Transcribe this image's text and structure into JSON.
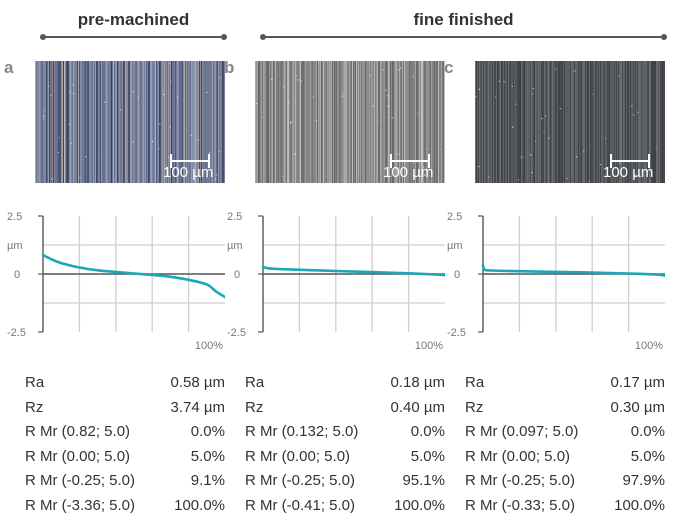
{
  "groups": [
    {
      "title": "pre-machined"
    },
    {
      "title": "fine finished"
    }
  ],
  "scale_bar_label": "100 µm",
  "colors": {
    "curve": "#1ba7b8",
    "grid": "#cfcfcf",
    "axis": "#555555"
  },
  "panels": [
    {
      "label": "a",
      "group": "pre-machined",
      "image": {
        "style": "colorful-scratched",
        "base": "#5a6482"
      },
      "metrics": [
        {
          "key": "Ra",
          "value": "0.58 µm"
        },
        {
          "key": "Rz",
          "value": "3.74 µm"
        },
        {
          "key": "R Mr (0.82; 5.0)",
          "value": "0.0%"
        },
        {
          "key": "R Mr (0.00; 5.0)",
          "value": "5.0%"
        },
        {
          "key": "R Mr (-0.25; 5.0)",
          "value": "9.1%"
        },
        {
          "key": "R Mr (-3.36; 5.0)",
          "value": "100.0%"
        }
      ]
    },
    {
      "label": "b",
      "group": "fine finished",
      "image": {
        "style": "gray-streaks",
        "base": "#7c7c7c"
      },
      "metrics": [
        {
          "key": "Ra",
          "value": "0.18 µm"
        },
        {
          "key": "Rz",
          "value": "0.40 µm"
        },
        {
          "key": "R Mr (0.132; 5.0)",
          "value": "0.0%"
        },
        {
          "key": "R Mr (0.00; 5.0)",
          "value": "5.0%"
        },
        {
          "key": "R Mr (-0.25; 5.0)",
          "value": "95.1%"
        },
        {
          "key": "R Mr (-0.41; 5.0)",
          "value": "100.0%"
        }
      ]
    },
    {
      "label": "c",
      "group": "fine finished",
      "image": {
        "style": "dark-gray",
        "base": "#4d5155"
      },
      "metrics": [
        {
          "key": "Ra",
          "value": "0.17 µm"
        },
        {
          "key": "Rz",
          "value": "0.30 µm"
        },
        {
          "key": "R Mr (0.097; 5.0)",
          "value": "0.0%"
        },
        {
          "key": "R Mr (0.00; 5.0)",
          "value": "5.0%"
        },
        {
          "key": "R Mr (-0.25; 5.0)",
          "value": "97.9%"
        },
        {
          "key": "R Mr (-0.33; 5.0)",
          "value": "100.0%"
        }
      ]
    }
  ],
  "chart_data": [
    {
      "type": "line",
      "panel": "a",
      "ylabel": "µm",
      "yticks": [
        "2.5",
        "0",
        "-2.5"
      ],
      "xtick_end": "100%",
      "xlim": [
        0,
        100
      ],
      "ylim": [
        -2.5,
        2.5
      ],
      "grid": true,
      "x": [
        0,
        5,
        10,
        20,
        30,
        40,
        50,
        60,
        70,
        80,
        90,
        95,
        100
      ],
      "y": [
        0.82,
        0.62,
        0.47,
        0.28,
        0.16,
        0.09,
        0.02,
        -0.04,
        -0.12,
        -0.25,
        -0.45,
        -0.75,
        -0.99
      ]
    },
    {
      "type": "line",
      "panel": "b",
      "ylabel": "µm",
      "yticks": [
        "2.5",
        "0",
        "-2.5"
      ],
      "xtick_end": "100%",
      "xlim": [
        0,
        100
      ],
      "ylim": [
        -2.5,
        2.5
      ],
      "grid": true,
      "x": [
        0,
        5,
        20,
        40,
        60,
        80,
        95,
        100
      ],
      "y": [
        0.3,
        0.23,
        0.18,
        0.13,
        0.08,
        0.03,
        -0.02,
        -0.05
      ]
    },
    {
      "type": "line",
      "panel": "c",
      "ylabel": "µm",
      "yticks": [
        "2.5",
        "0",
        "-2.5"
      ],
      "xtick_end": "100%",
      "xlim": [
        0,
        100
      ],
      "ylim": [
        -2.5,
        2.5
      ],
      "grid": true,
      "x": [
        0,
        1,
        5,
        20,
        40,
        60,
        80,
        95,
        100
      ],
      "y": [
        0.38,
        0.18,
        0.15,
        0.12,
        0.09,
        0.06,
        0.02,
        -0.02,
        -0.07
      ]
    }
  ]
}
